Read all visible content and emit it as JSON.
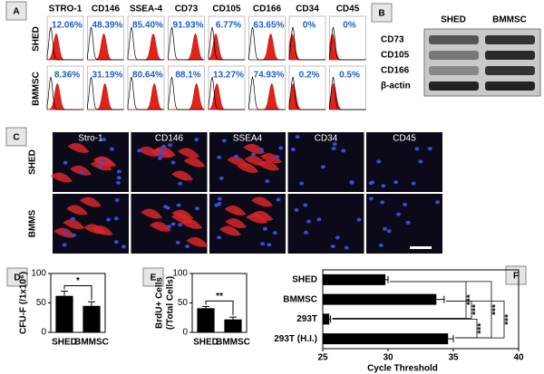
{
  "panel_a": {
    "label": "A",
    "markers": [
      "STRO-1",
      "CD146",
      "SSEA-4",
      "CD73",
      "CD105",
      "CD166",
      "CD34",
      "CD45"
    ],
    "rows": [
      {
        "name": "SHED",
        "percents": [
          "12.06%",
          "48.39%",
          "85.40%",
          "91.93%",
          "6.77%",
          "63.65%",
          "0%",
          "0%"
        ]
      },
      {
        "name": "BMMSC",
        "percents": [
          "8.36%",
          "31.19%",
          "80.64%",
          "88.1%",
          "13.27%",
          "74.93%",
          "0.2%",
          "0.5%"
        ]
      }
    ]
  },
  "panel_b": {
    "label": "B",
    "columns": [
      "SHED",
      "BMMSC"
    ],
    "rows": [
      "CD73",
      "CD105",
      "CD166",
      "β-actin"
    ]
  },
  "panel_c": {
    "label": "C",
    "columns": [
      "Stro-1",
      "CD146",
      "SSEA4",
      "CD34",
      "CD45"
    ],
    "rows": [
      "SHED",
      "BMMS"
    ]
  },
  "chart_data": [
    {
      "type": "bar",
      "label": "D",
      "ylabel": "CFU-F (/1x10⁶)",
      "categories": [
        "SHED",
        "BMMSC"
      ],
      "values": [
        62,
        45
      ],
      "errors": [
        8,
        7
      ],
      "color": "#000000",
      "ylim": [
        0,
        100
      ],
      "yticks": [
        0,
        50,
        100
      ],
      "annotations": [
        "*"
      ]
    },
    {
      "type": "bar",
      "label": "E",
      "ylabel": [
        "BrdU+ Cells",
        "(/Total Cells)"
      ],
      "categories": [
        "SHED",
        "BMMSC"
      ],
      "values": [
        41,
        22
      ],
      "errors": [
        3,
        4
      ],
      "color": "#000000",
      "ylim": [
        0,
        100
      ],
      "yticks": [
        0,
        50,
        100
      ],
      "annotations": [
        "**"
      ]
    },
    {
      "type": "hbar",
      "label": "F",
      "xlabel": "Cycle Threshold",
      "categories": [
        "SHED",
        "BMMSC",
        "293T",
        "293T (H.I.)"
      ],
      "values": [
        29.8,
        33.7,
        25.5,
        34.6
      ],
      "errors": [
        0.2,
        0.6,
        0.1,
        0.4
      ],
      "color": "#000000",
      "xlim": [
        25,
        40
      ],
      "xticks": [
        25,
        30,
        35,
        40
      ],
      "annotations": [
        "***",
        "***",
        "***",
        "***",
        "***"
      ]
    }
  ]
}
